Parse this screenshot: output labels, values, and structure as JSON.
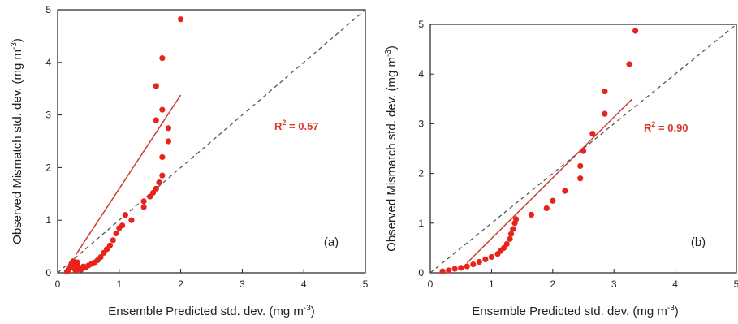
{
  "chart_data": [
    {
      "type": "scatter",
      "panel_label": "(a)",
      "xlabel": "Ensemble Predicted std. dev.",
      "xlabel_unit": "(mg m",
      "ylabel": "Observed Mismatch std. dev.",
      "ylabel_unit": "(mg m",
      "unit_exponent": "-3",
      "unit_close": ")",
      "xlim": [
        0,
        5
      ],
      "ylim": [
        0,
        5
      ],
      "xticks": [
        "0",
        "1",
        "2",
        "3",
        "4",
        "5"
      ],
      "yticks": [
        "0",
        "1",
        "2",
        "3",
        "4",
        "5"
      ],
      "annotation": {
        "r": "R",
        "sup": "2",
        "rest": " = 0.57"
      },
      "points": [
        [
          0.15,
          0.02
        ],
        [
          0.17,
          0.05
        ],
        [
          0.18,
          0.08
        ],
        [
          0.2,
          0.1
        ],
        [
          0.21,
          0.12
        ],
        [
          0.22,
          0.15
        ],
        [
          0.23,
          0.18
        ],
        [
          0.24,
          0.2
        ],
        [
          0.25,
          0.22
        ],
        [
          0.26,
          0.14
        ],
        [
          0.27,
          0.1
        ],
        [
          0.28,
          0.07
        ],
        [
          0.29,
          0.05
        ],
        [
          0.3,
          0.04
        ],
        [
          0.31,
          0.16
        ],
        [
          0.32,
          0.2
        ],
        [
          0.33,
          0.12
        ],
        [
          0.35,
          0.08
        ],
        [
          0.38,
          0.06
        ],
        [
          0.4,
          0.09
        ],
        [
          0.42,
          0.12
        ],
        [
          0.45,
          0.1
        ],
        [
          0.5,
          0.14
        ],
        [
          0.55,
          0.17
        ],
        [
          0.6,
          0.2
        ],
        [
          0.65,
          0.24
        ],
        [
          0.7,
          0.3
        ],
        [
          0.75,
          0.38
        ],
        [
          0.8,
          0.45
        ],
        [
          0.85,
          0.52
        ],
        [
          0.9,
          0.62
        ],
        [
          0.95,
          0.75
        ],
        [
          1.0,
          0.85
        ],
        [
          1.05,
          0.9
        ],
        [
          1.1,
          1.1
        ],
        [
          1.2,
          1.0
        ],
        [
          1.4,
          1.25
        ],
        [
          1.4,
          1.36
        ],
        [
          1.5,
          1.45
        ],
        [
          1.55,
          1.52
        ],
        [
          1.6,
          1.6
        ],
        [
          1.65,
          1.72
        ],
        [
          1.7,
          1.85
        ],
        [
          1.7,
          2.2
        ],
        [
          1.8,
          2.5
        ],
        [
          1.6,
          2.9
        ],
        [
          1.7,
          3.1
        ],
        [
          1.8,
          2.75
        ],
        [
          1.6,
          3.55
        ],
        [
          1.7,
          4.08
        ],
        [
          2.0,
          4.82
        ]
      ],
      "fit_line": [
        [
          0.3,
          0.35
        ],
        [
          2.0,
          3.38
        ]
      ],
      "one_to_one": [
        [
          0,
          0
        ],
        [
          5,
          5
        ]
      ]
    },
    {
      "type": "scatter",
      "panel_label": "(b)",
      "xlabel": "Ensemble Predicted std. dev.",
      "xlabel_unit": "(mg m",
      "ylabel": "Observed Mismatch std. dev.",
      "ylabel_unit": "(mg m",
      "unit_exponent": "-3",
      "unit_close": ")",
      "xlim": [
        0,
        5
      ],
      "ylim": [
        0,
        5
      ],
      "xticks": [
        "0",
        "1",
        "2",
        "3",
        "4",
        "5"
      ],
      "yticks": [
        "0",
        "1",
        "2",
        "3",
        "4",
        "5"
      ],
      "annotation": {
        "r": "R",
        "sup": "2",
        "rest": " = 0.90"
      },
      "points": [
        [
          0.2,
          0.03
        ],
        [
          0.3,
          0.05
        ],
        [
          0.4,
          0.08
        ],
        [
          0.5,
          0.1
        ],
        [
          0.6,
          0.13
        ],
        [
          0.7,
          0.17
        ],
        [
          0.8,
          0.22
        ],
        [
          0.9,
          0.27
        ],
        [
          1.0,
          0.32
        ],
        [
          1.1,
          0.38
        ],
        [
          1.15,
          0.44
        ],
        [
          1.2,
          0.5
        ],
        [
          1.25,
          0.58
        ],
        [
          1.3,
          0.68
        ],
        [
          1.32,
          0.78
        ],
        [
          1.35,
          0.88
        ],
        [
          1.38,
          1.0
        ],
        [
          1.4,
          1.08
        ],
        [
          1.65,
          1.17
        ],
        [
          1.9,
          1.3
        ],
        [
          2.0,
          1.45
        ],
        [
          2.2,
          1.65
        ],
        [
          2.45,
          1.9
        ],
        [
          2.45,
          2.15
        ],
        [
          2.5,
          2.45
        ],
        [
          2.65,
          2.8
        ],
        [
          2.85,
          3.2
        ],
        [
          2.85,
          3.65
        ],
        [
          3.25,
          4.2
        ],
        [
          3.35,
          4.87
        ]
      ],
      "fit_line": [
        [
          0.6,
          0.2
        ],
        [
          3.3,
          3.5
        ]
      ],
      "one_to_one": [
        [
          0,
          0
        ],
        [
          5,
          5
        ]
      ]
    }
  ],
  "colors": {
    "points": "#e8231b",
    "fit_line": "#cc3b35",
    "one_to_one": "#555555",
    "axes": "#222222"
  }
}
